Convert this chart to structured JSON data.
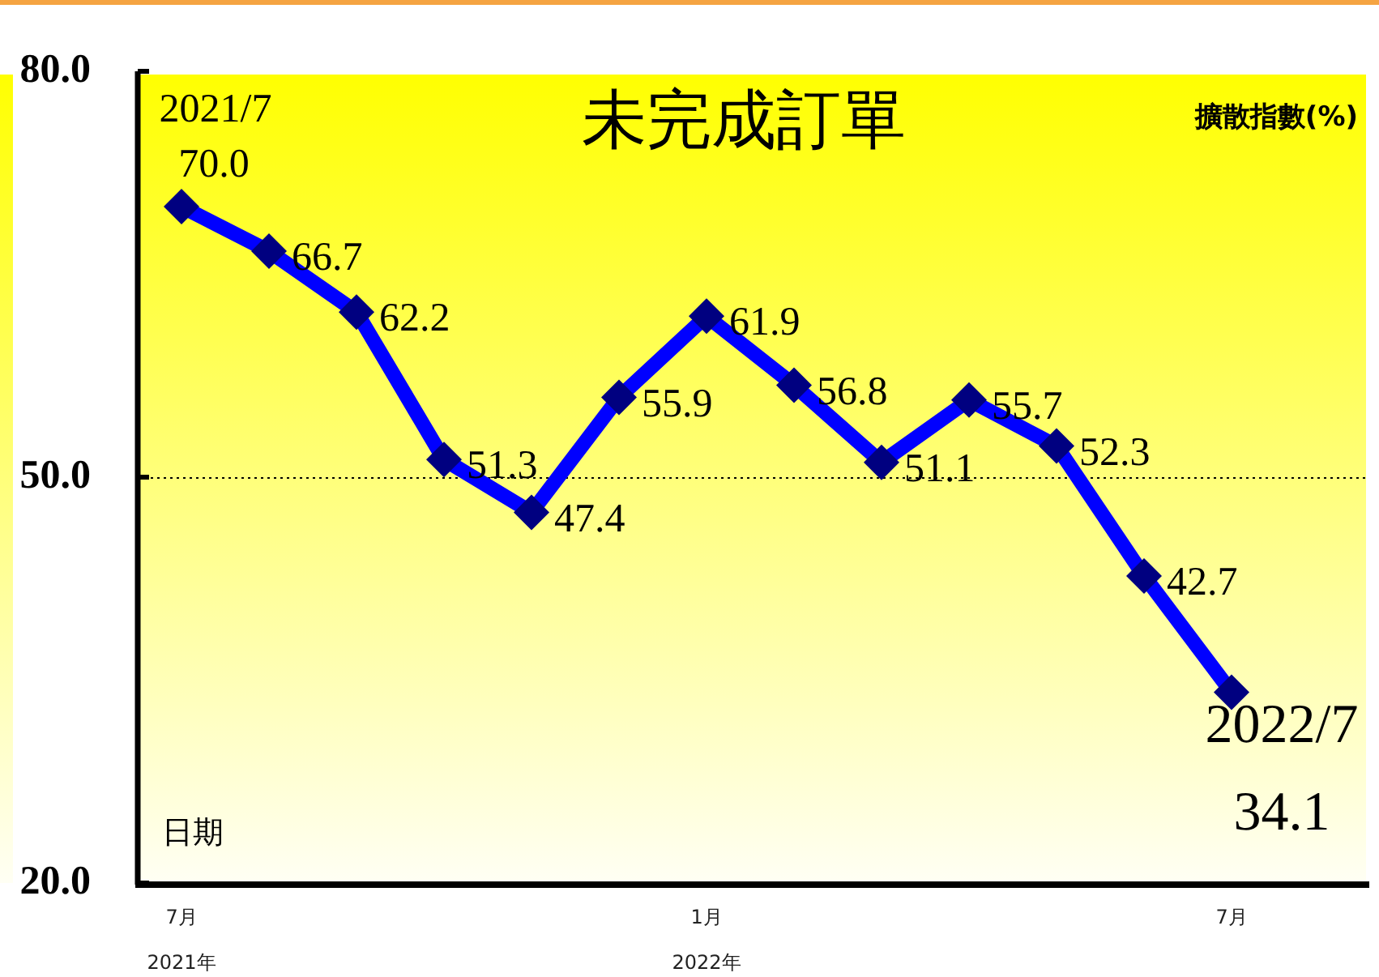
{
  "chart_data": {
    "type": "line",
    "title": "未完成訂單",
    "xlabel": "日期",
    "ylabel": "擴散指數(%)",
    "categories": [
      "7月\n2021年",
      null,
      null,
      null,
      null,
      null,
      "1月\n2022年",
      null,
      null,
      null,
      null,
      null,
      "7月"
    ],
    "values": [
      70.0,
      66.7,
      62.2,
      51.3,
      47.4,
      55.9,
      61.9,
      56.8,
      51.1,
      55.7,
      52.3,
      42.7,
      34.1
    ],
    "value_labels": [
      "70.0",
      "66.7",
      "62.2",
      "51.3",
      "47.4",
      "55.9",
      "61.9",
      "56.8",
      "51.1",
      "55.7",
      "52.3",
      "42.7",
      "34.1"
    ],
    "color": "#0000ff",
    "colors": [
      "#000080",
      "#000080",
      "#000080",
      "#000080",
      "#000080",
      "#000080",
      "#000080",
      "#000080",
      "#000080",
      "#000080",
      "#000080",
      "#000080",
      "#000080"
    ],
    "marker": "diamond",
    "line_style": "solid",
    "ylim": [
      20,
      80
    ],
    "yticks": [
      {
        "value": 20,
        "label": "20.0"
      },
      {
        "value": 50,
        "label": "50.0"
      },
      {
        "value": 80,
        "label": "80.0"
      }
    ],
    "ref_lines": [
      {
        "axis": "y",
        "value": 50,
        "line_style": "dotted",
        "color": "#000000"
      }
    ],
    "annotations": [
      {
        "text": "2021/7",
        "x": "7月\n2021年",
        "y": 70.0
      },
      {
        "text": "2022/7",
        "x": "7月",
        "y": 34.1
      }
    ]
  }
}
